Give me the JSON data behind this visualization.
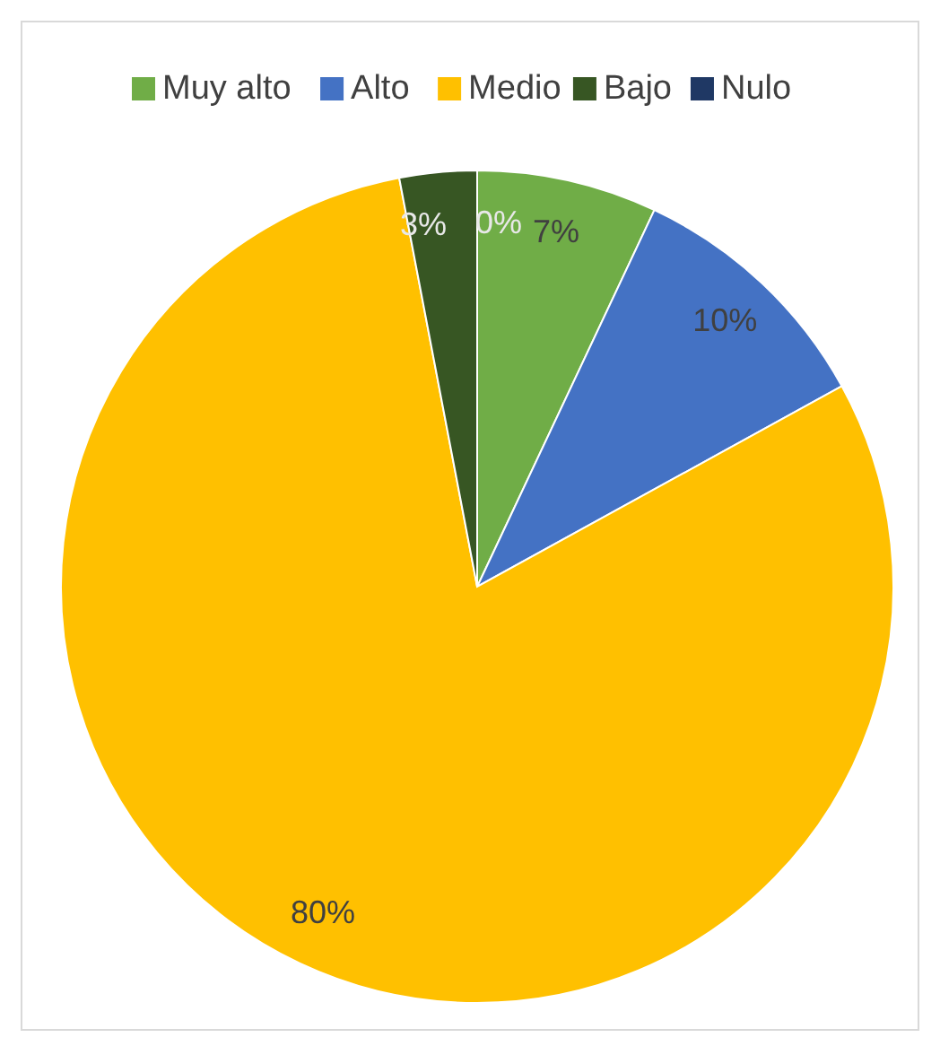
{
  "chart_data": {
    "type": "pie",
    "categories": [
      "Muy alto",
      "Alto",
      "Medio",
      "Bajo",
      "Nulo"
    ],
    "values": [
      7,
      10,
      80,
      3,
      0
    ],
    "colors": [
      "#70ad47",
      "#4472c4",
      "#ffc000",
      "#375623",
      "#1f3864"
    ],
    "value_labels": [
      "7%",
      "10%",
      "80%",
      "3%",
      "0%"
    ],
    "legend": "top"
  }
}
